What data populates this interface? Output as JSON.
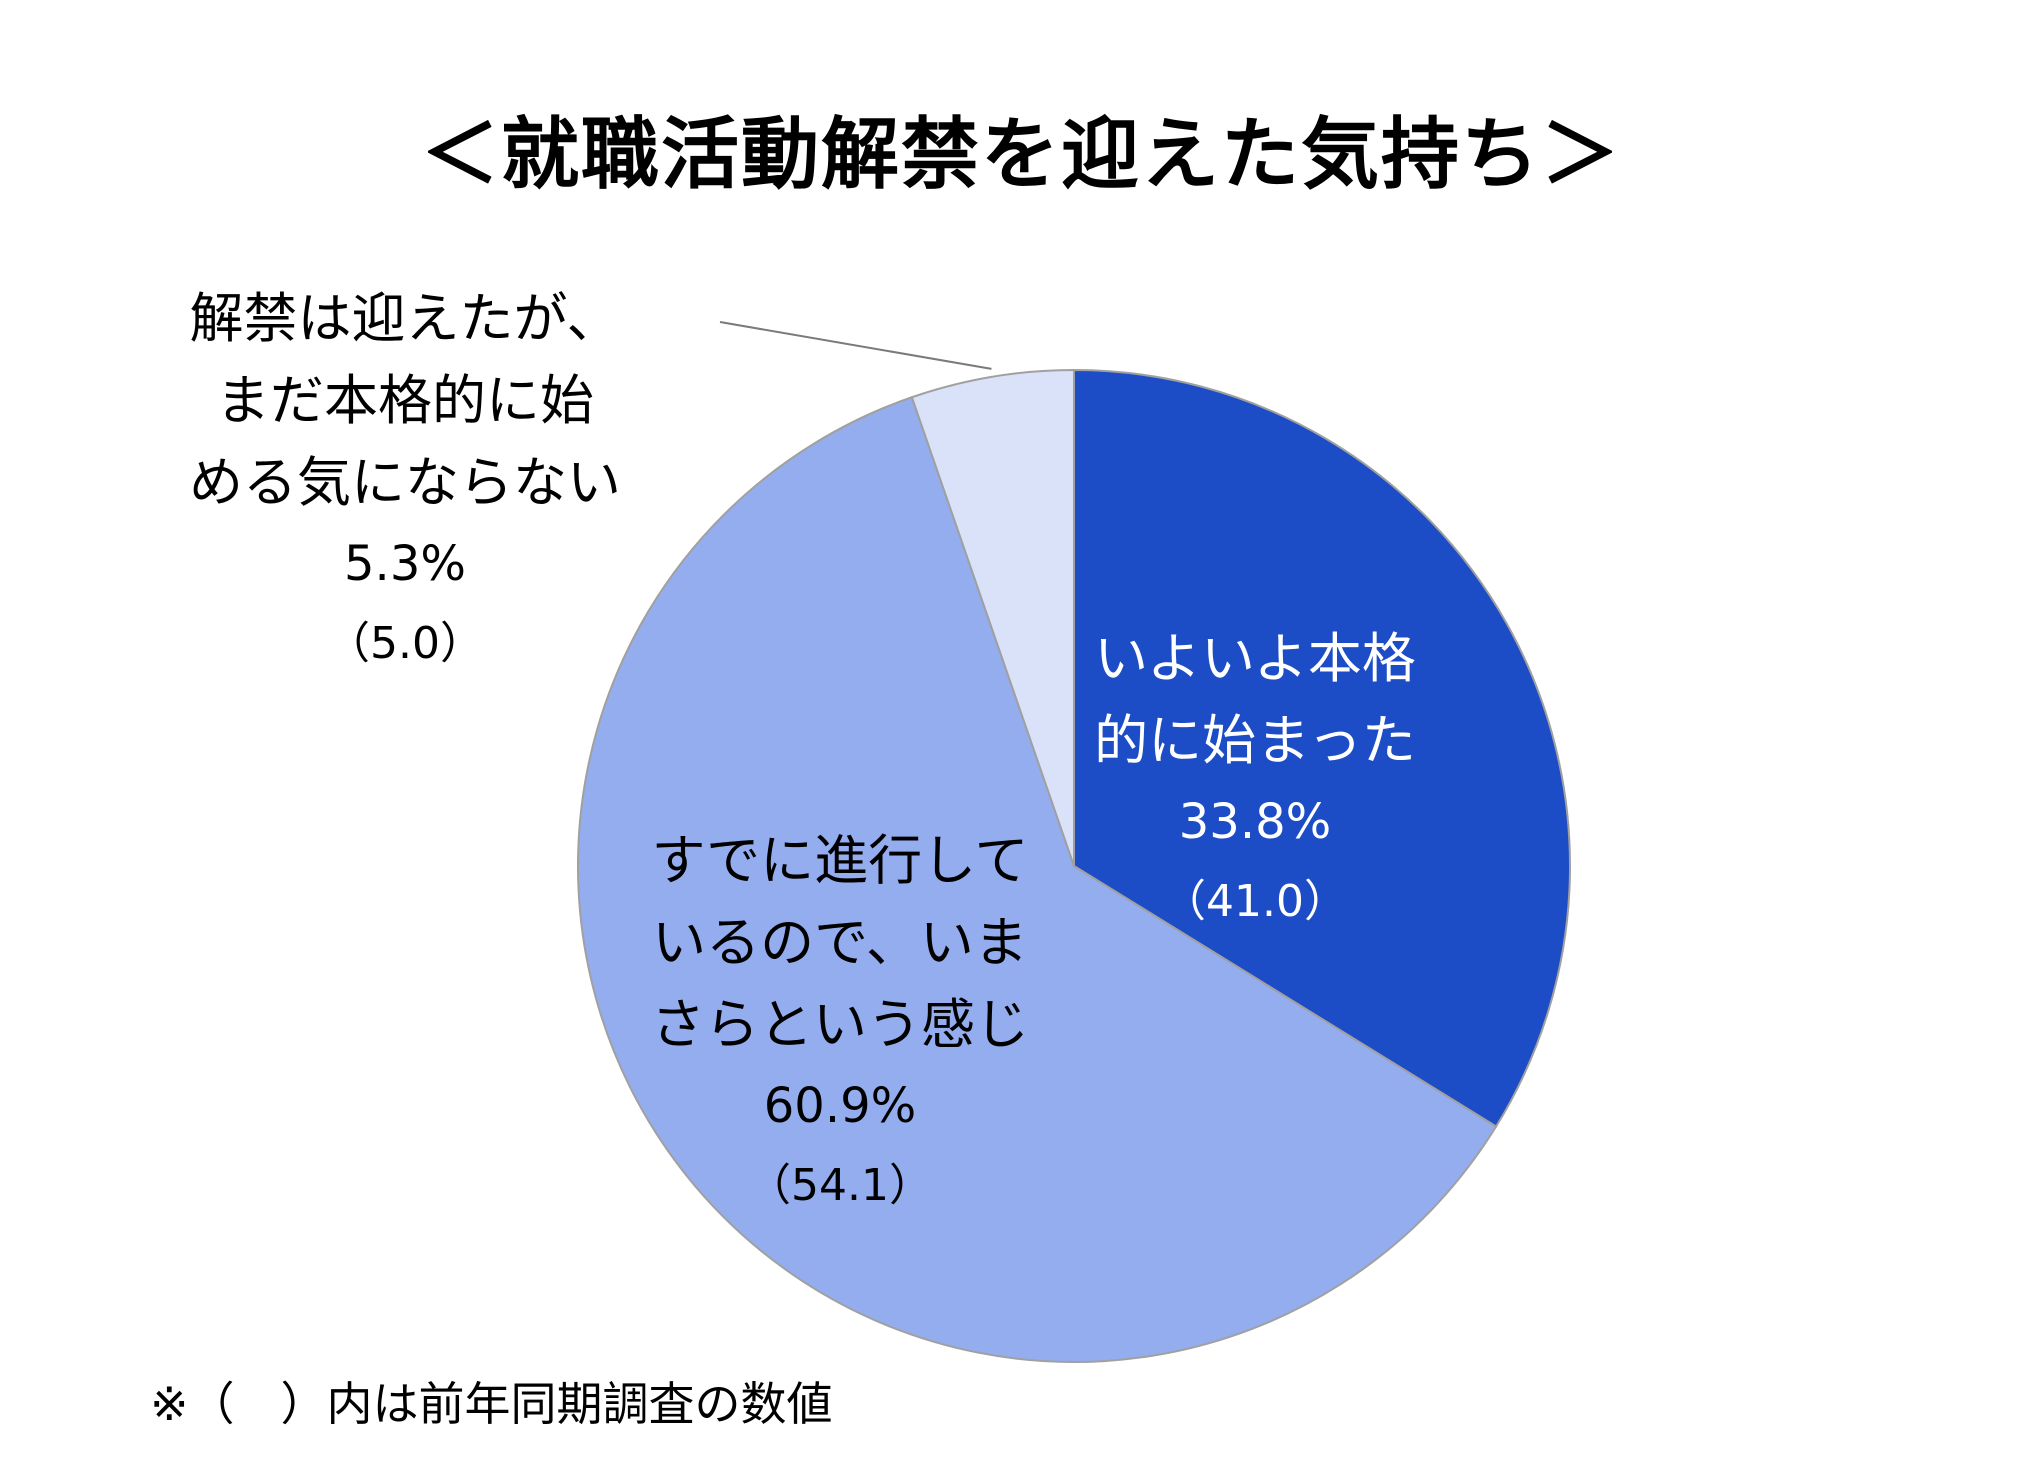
{
  "title": "＜就職活動解禁を迎えた気持ち＞",
  "footnote": "※（　）内は前年同期調査の数値",
  "colors": {
    "slice_started": "#1C4DC6",
    "slice_ongoing": "#93ADEF",
    "slice_not_yet": "#DAE2F9",
    "slice_border": "#A0A0A0"
  },
  "chart_data": {
    "type": "pie",
    "title": "＜就職活動解禁を迎えた気持ち＞",
    "slices": [
      {
        "label_lines": [
          "いよいよ本格",
          "的に始まった"
        ],
        "value": 33.8,
        "value_text": "33.8%",
        "previous": 41.0,
        "previous_text": "（41.0）"
      },
      {
        "label_lines": [
          "すでに進行して",
          "いるので、いま",
          "さらという感じ"
        ],
        "value": 60.9,
        "value_text": "60.9%",
        "previous": 54.1,
        "previous_text": "（54.1）"
      },
      {
        "label_lines": [
          "解禁は迎えたが、",
          "まだ本格的に始",
          "める気にならない"
        ],
        "value": 5.3,
        "value_text": "5.3%",
        "previous": 5.0,
        "previous_text": "（5.0）"
      }
    ],
    "start_angle": "12 o'clock",
    "direction": "clockwise",
    "legend": "none"
  }
}
